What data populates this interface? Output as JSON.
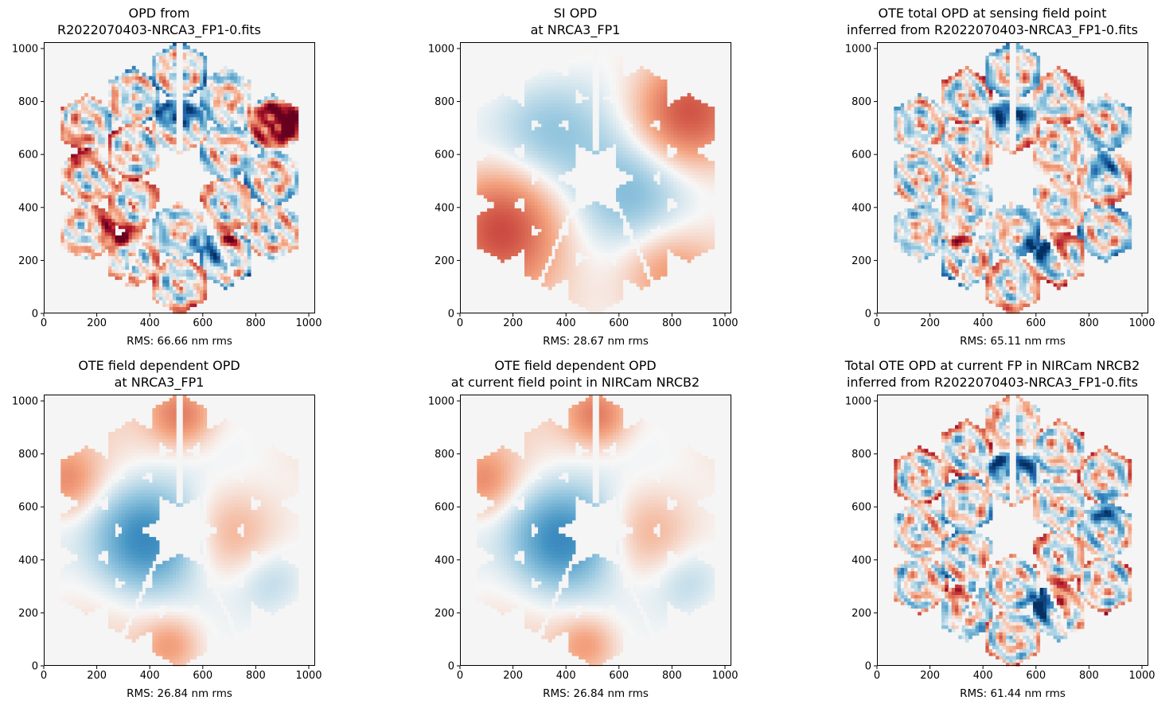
{
  "figure": {
    "colormap": "RdBu_r",
    "background_color": "#f5f5f5"
  },
  "chart_data": [
    {
      "type": "heatmap",
      "title_lines": [
        "OPD from",
        "R2022070403-NRCA3_FP1-0.fits"
      ],
      "xlabel": "RMS: 66.66 nm rms",
      "xlim": [
        0,
        1024
      ],
      "ylim": [
        0,
        1024
      ],
      "xticks": [
        0,
        200,
        400,
        600,
        800,
        1000
      ],
      "yticks": [
        0,
        200,
        400,
        600,
        800,
        1000
      ],
      "rms_nm": 66.66,
      "pattern": "segmented",
      "blobs": [
        [
          880,
          730,
          110,
          0.9,
          0
        ],
        [
          980,
          710,
          60,
          1.0,
          0
        ],
        [
          690,
          270,
          40,
          1.0,
          0
        ],
        [
          620,
          240,
          60,
          -1.0,
          0
        ],
        [
          460,
          760,
          50,
          -0.9,
          0
        ],
        [
          550,
          760,
          50,
          -0.9,
          0
        ],
        [
          130,
          610,
          50,
          0.7,
          0
        ],
        [
          300,
          290,
          35,
          0.9,
          0
        ],
        [
          240,
          350,
          60,
          0.5,
          0
        ]
      ]
    },
    {
      "type": "heatmap",
      "title_lines": [
        "SI OPD",
        "at NRCA3_FP1"
      ],
      "xlabel": "RMS: 28.67 nm rms",
      "xlim": [
        0,
        1024
      ],
      "ylim": [
        0,
        1024
      ],
      "xticks": [
        0,
        200,
        400,
        600,
        800,
        1000
      ],
      "yticks": [
        0,
        200,
        400,
        600,
        800,
        1000
      ],
      "rms_nm": 28.67,
      "pattern": "smooth",
      "blobs": [
        [
          150,
          330,
          220,
          0.55,
          0
        ],
        [
          850,
          750,
          200,
          0.55,
          0
        ],
        [
          780,
          160,
          180,
          0.3,
          0
        ],
        [
          320,
          700,
          220,
          -0.28,
          0
        ],
        [
          650,
          450,
          200,
          -0.2,
          0
        ]
      ]
    },
    {
      "type": "heatmap",
      "title_lines": [
        "OTE total OPD at sensing field point",
        "inferred from R2022070403-NRCA3_FP1-0.fits"
      ],
      "xlabel": "RMS: 65.11 nm rms",
      "xlim": [
        0,
        1024
      ],
      "ylim": [
        0,
        1024
      ],
      "xticks": [
        0,
        200,
        400,
        600,
        800,
        1000
      ],
      "yticks": [
        0,
        200,
        400,
        600,
        800,
        1000
      ],
      "rms_nm": 65.11,
      "pattern": "segmented",
      "blobs": [
        [
          690,
          270,
          40,
          1.0,
          0
        ],
        [
          620,
          240,
          60,
          -1.0,
          0
        ],
        [
          870,
          580,
          60,
          -0.7,
          0
        ],
        [
          460,
          760,
          50,
          -0.9,
          0
        ],
        [
          560,
          760,
          50,
          -0.9,
          0
        ],
        [
          300,
          290,
          35,
          0.9,
          0
        ]
      ]
    },
    {
      "type": "heatmap",
      "title_lines": [
        "OTE field dependent OPD",
        "at NRCA3_FP1"
      ],
      "xlabel": "RMS: 26.84 nm rms",
      "xlim": [
        0,
        1024
      ],
      "ylim": [
        0,
        1024
      ],
      "xticks": [
        0,
        200,
        400,
        600,
        800,
        1000
      ],
      "yticks": [
        0,
        200,
        400,
        600,
        800,
        1000
      ],
      "rms_nm": 26.84,
      "pattern": "smooth",
      "blobs": [
        [
          380,
          480,
          190,
          -0.55,
          0
        ],
        [
          700,
          500,
          190,
          0.32,
          0
        ],
        [
          80,
          700,
          130,
          0.32,
          0
        ],
        [
          520,
          950,
          120,
          0.38,
          0
        ],
        [
          860,
          320,
          130,
          -0.15,
          0
        ],
        [
          480,
          80,
          110,
          0.25,
          0
        ]
      ]
    },
    {
      "type": "heatmap",
      "title_lines": [
        "OTE field dependent OPD",
        "at current field point in NIRCam NRCB2"
      ],
      "xlabel": "RMS: 26.84 nm rms",
      "xlim": [
        0,
        1024
      ],
      "ylim": [
        0,
        1024
      ],
      "xticks": [
        0,
        200,
        400,
        600,
        800,
        1000
      ],
      "yticks": [
        0,
        200,
        400,
        600,
        800,
        1000
      ],
      "rms_nm": 26.84,
      "pattern": "smooth",
      "blobs": [
        [
          380,
          480,
          190,
          -0.55,
          0
        ],
        [
          700,
          500,
          190,
          0.32,
          0
        ],
        [
          80,
          700,
          130,
          0.32,
          0
        ],
        [
          520,
          950,
          120,
          0.38,
          0
        ],
        [
          860,
          320,
          130,
          -0.15,
          0
        ],
        [
          480,
          80,
          110,
          0.25,
          0
        ]
      ]
    },
    {
      "type": "heatmap",
      "title_lines": [
        "Total OTE OPD at current FP in NIRCam NRCB2",
        "inferred from R2022070403-NRCA3_FP1-0.fits"
      ],
      "xlabel": "RMS: 61.44 nm rms",
      "xlim": [
        0,
        1024
      ],
      "ylim": [
        0,
        1024
      ],
      "xticks": [
        0,
        200,
        400,
        600,
        800,
        1000
      ],
      "yticks": [
        0,
        200,
        400,
        600,
        800,
        1000
      ],
      "rms_nm": 61.44,
      "pattern": "segmented",
      "blobs": [
        [
          690,
          270,
          40,
          1.0,
          0
        ],
        [
          620,
          240,
          60,
          -1.0,
          0
        ],
        [
          870,
          580,
          60,
          -0.7,
          0
        ],
        [
          460,
          760,
          50,
          -0.9,
          0
        ],
        [
          560,
          760,
          50,
          -0.9,
          0
        ],
        [
          300,
          290,
          35,
          0.9,
          0
        ],
        [
          1000,
          720,
          40,
          0.9,
          0
        ]
      ]
    }
  ]
}
